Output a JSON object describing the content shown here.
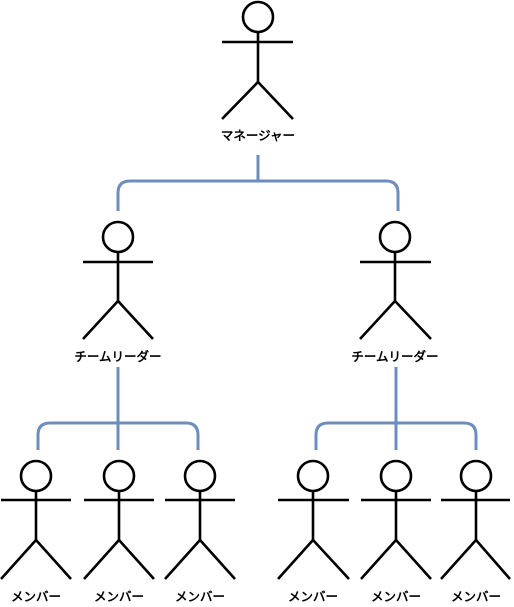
{
  "diagram": {
    "type": "org-chart",
    "manager": {
      "label": "マネージャー"
    },
    "teams": [
      {
        "leader": {
          "label": "チームリーダー"
        },
        "members": [
          {
            "label": "メンバー"
          },
          {
            "label": "メンバー"
          },
          {
            "label": "メンバー"
          }
        ]
      },
      {
        "leader": {
          "label": "チームリーダー"
        },
        "members": [
          {
            "label": "メンバー"
          },
          {
            "label": "メンバー"
          },
          {
            "label": "メンバー"
          }
        ]
      }
    ],
    "colors": {
      "connector": "#6c8ebf",
      "actor": "#000000",
      "background": "#ffffff"
    }
  }
}
